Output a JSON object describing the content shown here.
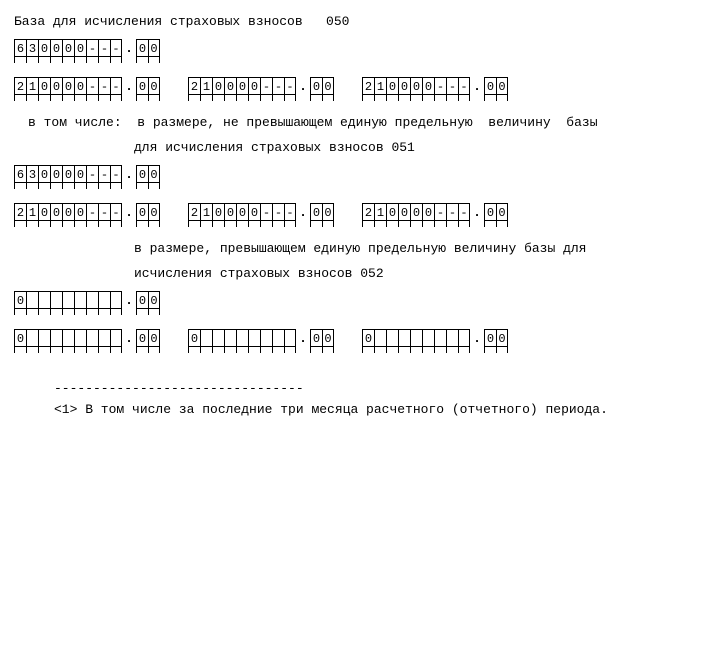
{
  "section050": {
    "title": "База для исчисления страховых взносов   050",
    "total": {
      "int": [
        "6",
        "3",
        "0",
        "0",
        "0",
        "0",
        "-",
        "-",
        "-"
      ],
      "dec": [
        "0",
        "0"
      ]
    },
    "q": [
      {
        "int": [
          "2",
          "1",
          "0",
          "0",
          "0",
          "0",
          "-",
          "-",
          "-"
        ],
        "dec": [
          "0",
          "0"
        ]
      },
      {
        "int": [
          "2",
          "1",
          "0",
          "0",
          "0",
          "0",
          "-",
          "-",
          "-"
        ],
        "dec": [
          "0",
          "0"
        ]
      },
      {
        "int": [
          "2",
          "1",
          "0",
          "0",
          "0",
          "0",
          "-",
          "-",
          "-"
        ],
        "dec": [
          "0",
          "0"
        ]
      }
    ]
  },
  "section051": {
    "title1": "в том числе:  в размере, не превышающем единую предельную  величину  базы",
    "title2": "для исчисления страховых взносов 051",
    "total": {
      "int": [
        "6",
        "3",
        "0",
        "0",
        "0",
        "0",
        "-",
        "-",
        "-"
      ],
      "dec": [
        "0",
        "0"
      ]
    },
    "q": [
      {
        "int": [
          "2",
          "1",
          "0",
          "0",
          "0",
          "0",
          "-",
          "-",
          "-"
        ],
        "dec": [
          "0",
          "0"
        ]
      },
      {
        "int": [
          "2",
          "1",
          "0",
          "0",
          "0",
          "0",
          "-",
          "-",
          "-"
        ],
        "dec": [
          "0",
          "0"
        ]
      },
      {
        "int": [
          "2",
          "1",
          "0",
          "0",
          "0",
          "0",
          "-",
          "-",
          "-"
        ],
        "dec": [
          "0",
          "0"
        ]
      }
    ]
  },
  "section052": {
    "title1": "в размере, превышающем единую предельную величину базы для",
    "title2": "исчисления страховых взносов 052",
    "total": {
      "int": [
        "0",
        "",
        "",
        "",
        "",
        "",
        "",
        "",
        ""
      ],
      "dec": [
        "0",
        "0"
      ]
    },
    "q": [
      {
        "int": [
          "0",
          "",
          "",
          "",
          "",
          "",
          "",
          "",
          ""
        ],
        "dec": [
          "0",
          "0"
        ]
      },
      {
        "int": [
          "0",
          "",
          "",
          "",
          "",
          "",
          "",
          "",
          ""
        ],
        "dec": [
          "0",
          "0"
        ]
      },
      {
        "int": [
          "0",
          "",
          "",
          "",
          "",
          "",
          "",
          "",
          ""
        ],
        "dec": [
          "0",
          "0"
        ]
      }
    ]
  },
  "rule": "--------------------------------",
  "footnote": "<1> В том числе за последние три месяца расчетного (отчетного) периода.",
  "dot": "."
}
